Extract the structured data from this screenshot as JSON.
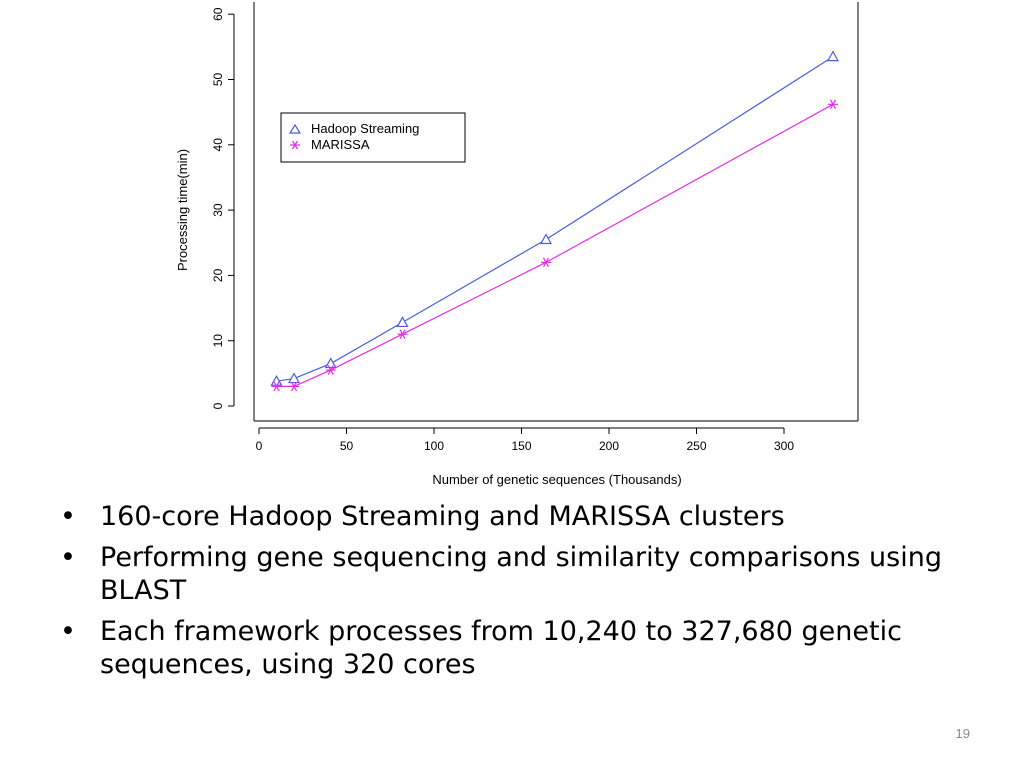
{
  "chart_data": {
    "type": "line",
    "title": "",
    "xlabel": "Number of genetic sequences (Thousands)",
    "ylabel": "Processing time(min)",
    "xlim": [
      0,
      340
    ],
    "ylim": [
      0,
      60
    ],
    "xticks": [
      0,
      50,
      100,
      150,
      200,
      250,
      300
    ],
    "yticks": [
      0,
      10,
      20,
      30,
      40,
      50,
      60
    ],
    "legend_position": "top-left",
    "grid": false,
    "series": [
      {
        "name": "Hadoop Streaming",
        "marker": "triangle",
        "color": "#4a5fd8",
        "x": [
          10,
          20,
          41,
          82,
          164,
          328
        ],
        "y": [
          3.8,
          4.2,
          6.5,
          12.8,
          25.5,
          53.5
        ]
      },
      {
        "name": "MARISSA",
        "marker": "asterisk",
        "color": "#e52fe5",
        "x": [
          10,
          20,
          41,
          82,
          164,
          328
        ],
        "y": [
          3.0,
          3.0,
          5.5,
          11.0,
          22.0,
          46.2
        ]
      }
    ]
  },
  "bullets": [
    "160-core Hadoop Streaming and MARISSA clusters",
    "Performing gene sequencing and similarity comparisons using BLAST",
    "Each framework processes from 10,240 to 327,680 genetic sequences, using 320 cores"
  ],
  "bullet_glyph": "•",
  "slide_number": "19"
}
